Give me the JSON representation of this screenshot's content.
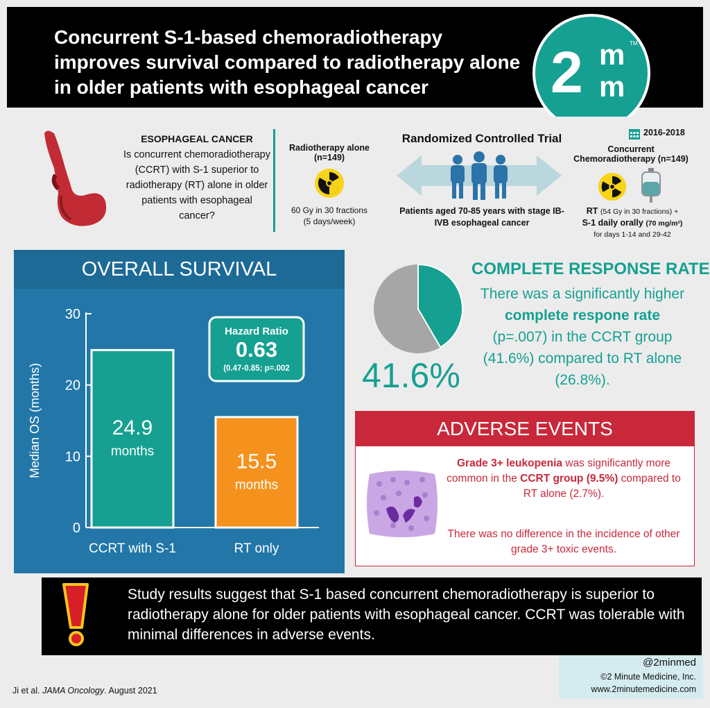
{
  "header": {
    "title": "Concurrent S-1-based chemoradiotherapy improves survival compared to radiotherapy alone in older patients with esophageal cancer",
    "logo": {
      "big": "2",
      "m1": "m",
      "m2": "m",
      "tm": "TM"
    }
  },
  "study": {
    "disease": "ESOPHAGEAL CANCER",
    "question": "Is concurrent chemoradiotherapy (CCRT) with S-1 superior to radiotherapy (RT) alone in older patients with esophageal cancer?",
    "rt_arm": {
      "title": "Radiotherapy alone",
      "n": "(n=149)",
      "line1": "60 Gy in 30 fractions",
      "line2": "(5 days/week)"
    },
    "trial_title": "Randomized Controlled Trial",
    "population": "Patients aged 70-85 years with stage IB-IVB esophageal cancer",
    "years": "2016-2018",
    "ccrt_arm": {
      "title": "Concurrent",
      "title2": "Chemoradiotherapy (n=149)",
      "rt_label": "RT",
      "rt_dose": "(54 Gy in 30 fractions) +",
      "drug": "S-1 daily orally",
      "drug_dose": "(70 mg/m²)",
      "schedule": "for days 1-14 and 29-42"
    },
    "icons": [
      "esophagus-stomach-icon",
      "radiation-icon",
      "people-icon",
      "calendar-icon",
      "iv-bag-icon"
    ]
  },
  "os": {
    "title": "OVERALL SURVIVAL",
    "hazard_label": "Hazard Ratio",
    "hazard_value": "0.63",
    "hazard_ci": "(0.47-0.85; p=.002"
  },
  "chart_data": {
    "type": "bar",
    "ylabel": "Median OS (months)",
    "ylim": [
      0,
      30
    ],
    "yticks": [
      0,
      10,
      20,
      30
    ],
    "categories": [
      "CCRT with S-1",
      "RT only"
    ],
    "values": [
      24.9,
      15.5
    ],
    "value_labels": [
      "24.9",
      "15.5"
    ],
    "unit_label": "months",
    "colors": [
      "#15a091",
      "#f5921e"
    ]
  },
  "cr": {
    "title": "COMPLETE RESPONSE RATE",
    "text_a": "There was a significantly higher ",
    "text_b": "complete respone rate",
    "text_c": " (p=.007) in the CCRT group (41.6%) compared to RT alone (26.8%).",
    "pct": "41.6%",
    "fraction": 0.416
  },
  "ae": {
    "title": "ADVERSE EVENTS",
    "t1a": "Grade 3+ leukopenia",
    "t1b": " was significantly more common in the ",
    "t1c": "CCRT group (9.5%)",
    "t1d": " compared to RT alone (2.7%).",
    "t2": "There was no difference in the incidence of other grade 3+ toxic events."
  },
  "conclusion": {
    "text": "Study results suggest that S-1 based concurrent chemoradiotherapy is superior to radiotherapy alone for older patients with esophageal cancer. CCRT was tolerable with minimal differences in adverse events."
  },
  "footer": {
    "citation_a": "Ji et al. ",
    "citation_journal": "JAMA Oncology",
    "citation_b": ". August 2021",
    "handle": "@2minmed",
    "company": "©2 Minute Medicine, Inc.",
    "website": "www.2minutemedicine.com"
  },
  "colors": {
    "teal": "#15a091",
    "orange": "#f5921e",
    "red": "#c9283a",
    "blue": "#2277a8"
  }
}
